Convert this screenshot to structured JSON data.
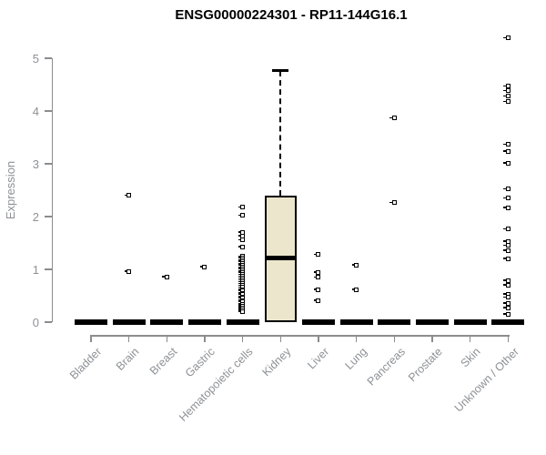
{
  "header": {
    "title": "ENSG00000224301 - RP11-144G16.1"
  },
  "chart_data": {
    "type": "boxplot",
    "title": "ENSG00000224301 - RP11-144G16.1",
    "xlabel": "",
    "ylabel": "Expression",
    "ylim": [
      0,
      5
    ],
    "yticks": [
      0,
      1,
      2,
      3,
      4,
      5
    ],
    "grid": false,
    "legend": "none",
    "colors": {
      "box_fill": "#ebe6cc",
      "box_border": "#000000",
      "median": "#000000",
      "outlier_marker": "#000000",
      "axis": "#8c8c8c",
      "axis_text": "#8d9196",
      "background": "#ffffff",
      "title_text": "#000000"
    },
    "categories": [
      "Bladder",
      "Brain",
      "Breast",
      "Gastric",
      "Hematopoietic cells",
      "Kidney",
      "Liver",
      "Lung",
      "Pancreas",
      "Prostate",
      "Skin",
      "Unknown / Other"
    ],
    "boxes": [
      {
        "category": "Bladder",
        "q1": 0,
        "median": 0,
        "q3": 0,
        "whisker_low": 0,
        "whisker_high": 0,
        "outliers": []
      },
      {
        "category": "Brain",
        "q1": 0,
        "median": 0,
        "q3": 0,
        "whisker_low": 0,
        "whisker_high": 0,
        "outliers": [
          2.4,
          0.96
        ]
      },
      {
        "category": "Breast",
        "q1": 0,
        "median": 0,
        "q3": 0,
        "whisker_low": 0,
        "whisker_high": 0,
        "outliers": [
          0.86
        ]
      },
      {
        "category": "Gastric",
        "q1": 0,
        "median": 0,
        "q3": 0,
        "whisker_low": 0,
        "whisker_high": 0,
        "outliers": [
          1.05
        ]
      },
      {
        "category": "Hematopoietic cells",
        "q1": 0,
        "median": 0,
        "q3": 0,
        "whisker_low": 0,
        "whisker_high": 0,
        "outliers": [
          2.18,
          2.02,
          1.7,
          1.63,
          1.56,
          1.43,
          1.25,
          1.22,
          1.18,
          1.15,
          1.11,
          1.08,
          1.04,
          1.01,
          0.97,
          0.94,
          0.9,
          0.87,
          0.83,
          0.8,
          0.76,
          0.73,
          0.69,
          0.66,
          0.62,
          0.59,
          0.55,
          0.52,
          0.48,
          0.45,
          0.41,
          0.38,
          0.34,
          0.31,
          0.27,
          0.24,
          0.2
        ]
      },
      {
        "category": "Kidney",
        "q1": 0,
        "median": 1.22,
        "q3": 2.4,
        "whisker_low": 0,
        "whisker_high": 4.76,
        "outliers": []
      },
      {
        "category": "Liver",
        "q1": 0,
        "median": 0,
        "q3": 0,
        "whisker_low": 0,
        "whisker_high": 0,
        "outliers": [
          1.28,
          0.94,
          0.85,
          0.62,
          0.41
        ]
      },
      {
        "category": "Lung",
        "q1": 0,
        "median": 0,
        "q3": 0,
        "whisker_low": 0,
        "whisker_high": 0,
        "outliers": [
          1.08,
          0.62
        ]
      },
      {
        "category": "Pancreas",
        "q1": 0,
        "median": 0,
        "q3": 0,
        "whisker_low": 0,
        "whisker_high": 0,
        "outliers": [
          3.87,
          2.26
        ]
      },
      {
        "category": "Prostate",
        "q1": 0,
        "median": 0,
        "q3": 0,
        "whisker_low": 0,
        "whisker_high": 0,
        "outliers": []
      },
      {
        "category": "Skin",
        "q1": 0,
        "median": 0,
        "q3": 0,
        "whisker_low": 0,
        "whisker_high": 0,
        "outliers": []
      },
      {
        "category": "Unknown / Other",
        "q1": 0,
        "median": 0,
        "q3": 0,
        "whisker_low": 0,
        "whisker_high": 0,
        "outliers": [
          5.38,
          4.47,
          4.38,
          4.28,
          4.18,
          3.37,
          3.24,
          3.01,
          2.52,
          2.35,
          2.17,
          1.76,
          1.53,
          1.45,
          1.36,
          1.2,
          0.79,
          0.7,
          0.53,
          0.47,
          0.36,
          0.27,
          0.15
        ]
      }
    ]
  }
}
